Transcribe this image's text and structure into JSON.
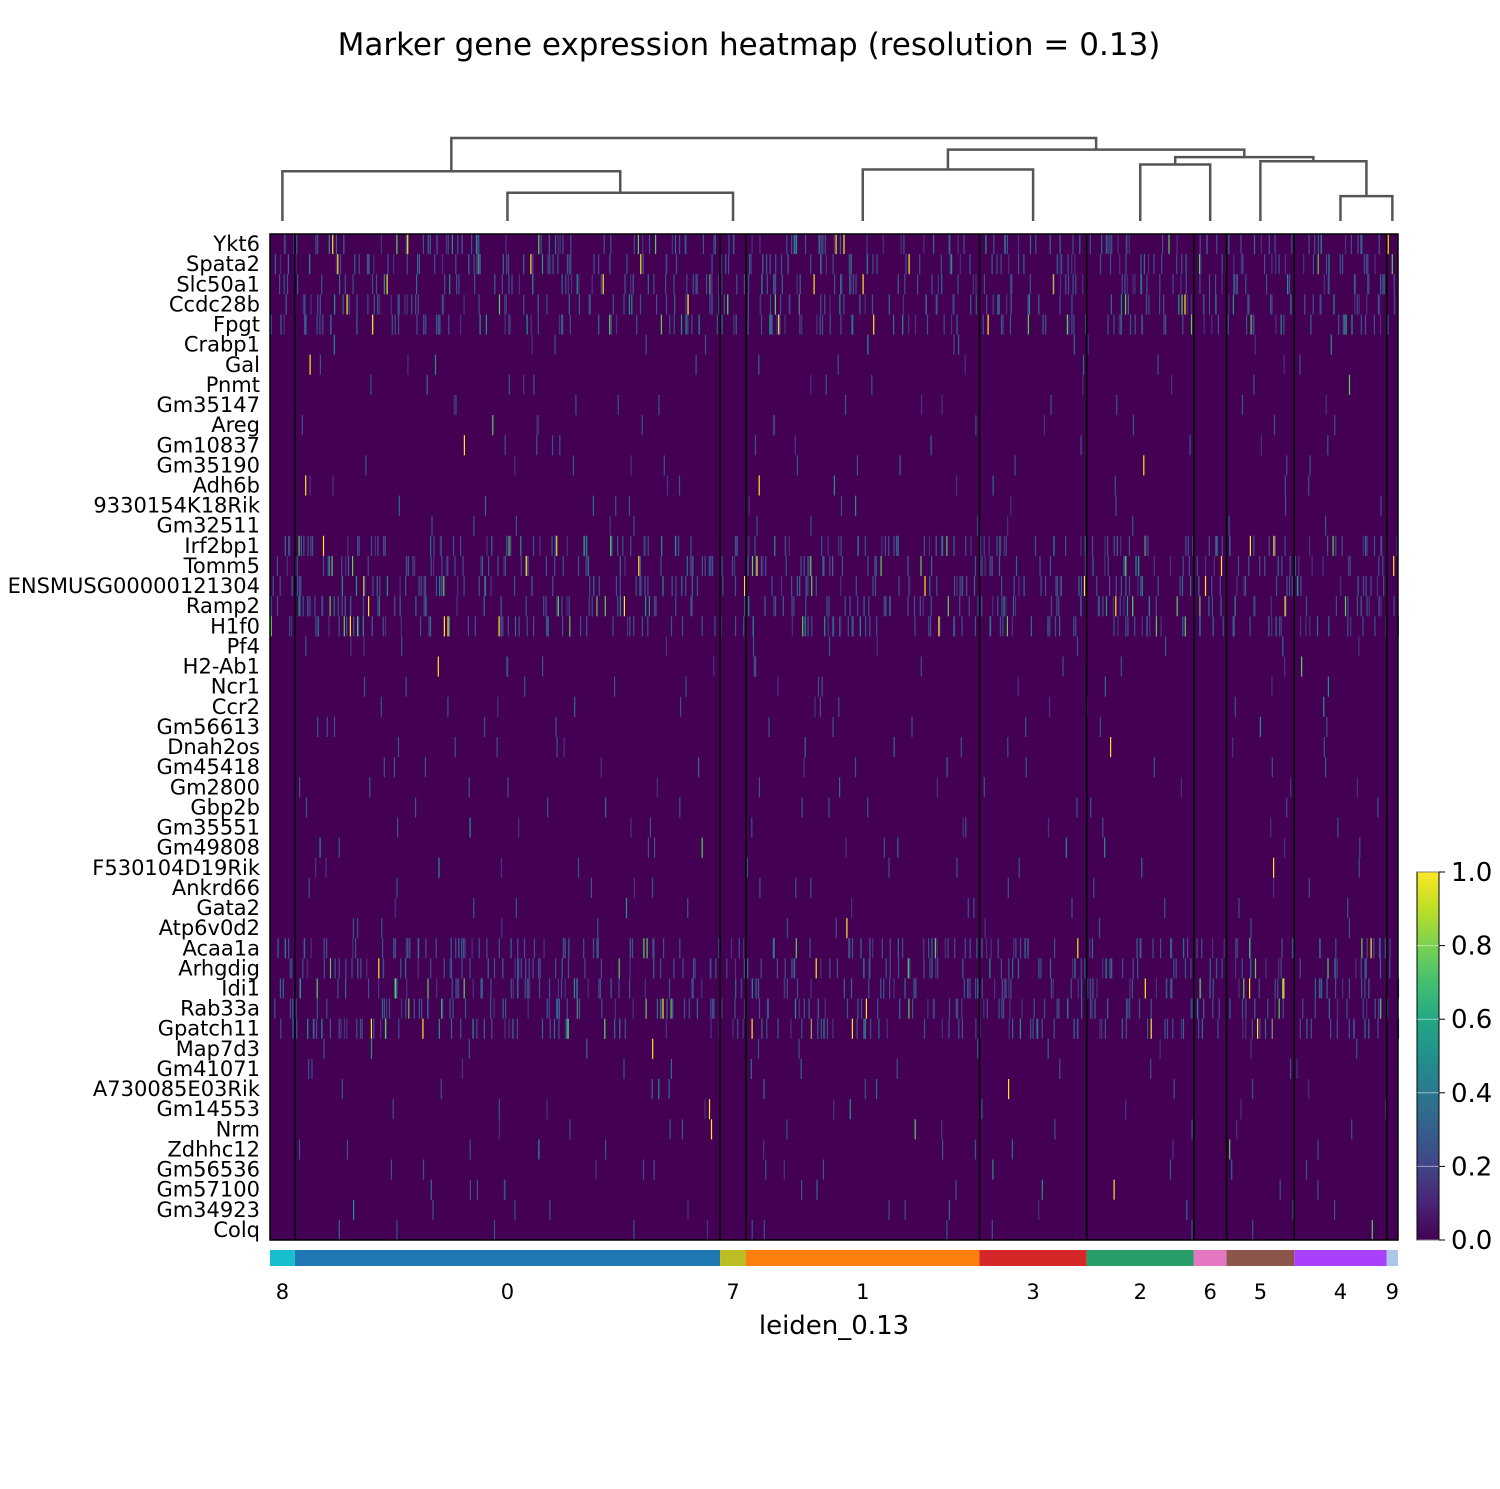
{
  "chart_data": {
    "type": "heatmap",
    "title": "Marker gene expression heatmap (resolution = 0.13)",
    "xlabel": "leiden_0.13",
    "ylabel": "",
    "genes": [
      "Ykt6",
      "Spata2",
      "Slc50a1",
      "Ccdc28b",
      "Fpgt",
      "Crabp1",
      "Gal",
      "Pnmt",
      "Gm35147",
      "Areg",
      "Gm10837",
      "Gm35190",
      "Adh6b",
      "9330154K18Rik",
      "Gm32511",
      "Irf2bp1",
      "Tomm5",
      "ENSMUSG00000121304",
      "Ramp2",
      "H1f0",
      "Pf4",
      "H2-Ab1",
      "Ncr1",
      "Ccr2",
      "Gm56613",
      "Dnah2os",
      "Gm45418",
      "Gm2800",
      "Gbp2b",
      "Gm35551",
      "Gm49808",
      "F530104D19Rik",
      "Ankrd66",
      "Gata2",
      "Atp6v0d2",
      "Acaa1a",
      "Arhgdig",
      "Idi1",
      "Rab33a",
      "Gpatch11",
      "Map7d3",
      "Gm41071",
      "A730085E03Rik",
      "Gm14553",
      "Nrm",
      "Zdhhc12",
      "Gm56536",
      "Gm57100",
      "Gm34923",
      "Colq"
    ],
    "clusters": [
      {
        "label": "8",
        "color": "#17becf",
        "fraction": 0.022
      },
      {
        "label": "0",
        "color": "#1f77b4",
        "fraction": 0.377
      },
      {
        "label": "7",
        "color": "#bcbd22",
        "fraction": 0.023
      },
      {
        "label": "1",
        "color": "#ff7f0e",
        "fraction": 0.207
      },
      {
        "label": "3",
        "color": "#d62728",
        "fraction": 0.095
      },
      {
        "label": "2",
        "color": "#279e68",
        "fraction": 0.095
      },
      {
        "label": "6",
        "color": "#e377c2",
        "fraction": 0.029
      },
      {
        "label": "5",
        "color": "#8c564b",
        "fraction": 0.06
      },
      {
        "label": "4",
        "color": "#aa40fc",
        "fraction": 0.082
      },
      {
        "label": "9",
        "color": "#aec7e8",
        "fraction": 0.01
      }
    ],
    "dendrogram": {
      "order": [
        "8",
        "0",
        "7",
        "1",
        "3",
        "2",
        "6",
        "5",
        "4",
        "9"
      ],
      "merges": [
        {
          "a": "4",
          "b": "9",
          "height": 0.3
        },
        {
          "a": "0",
          "b": "7",
          "height": 0.34
        },
        {
          "a": "5",
          "b": "4+9",
          "height": 0.72
        },
        {
          "a": "1",
          "b": "3",
          "height": 0.62
        },
        {
          "a": "2",
          "b": "6",
          "height": 0.68
        },
        {
          "a": "2+6",
          "b": "5+4+9",
          "height": 0.77
        },
        {
          "a": "1+3",
          "b": "2+6+5+4+9",
          "height": 0.86
        },
        {
          "a": "8",
          "b": "0+7",
          "height": 0.6
        },
        {
          "a": "8+0+7",
          "b": "1+3+2+6+5+4+9",
          "height": 1.0
        }
      ]
    },
    "value_range": [
      0.0,
      1.0
    ],
    "colormap": "viridis",
    "colorbar_ticks": [
      "0.0",
      "0.2",
      "0.4",
      "0.6",
      "0.8",
      "1.0"
    ],
    "background_value_color": "#440154"
  }
}
